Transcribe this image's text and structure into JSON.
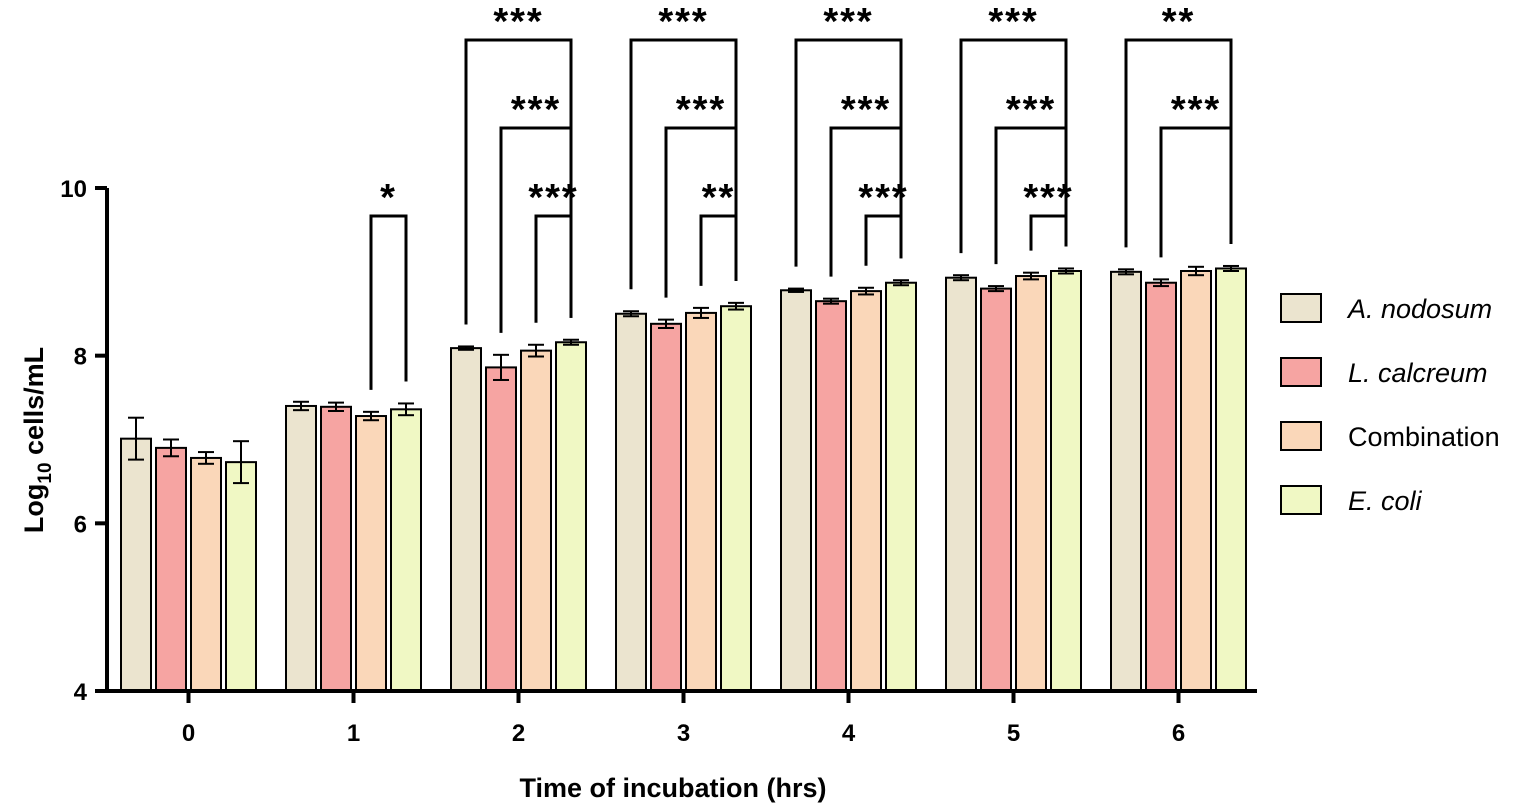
{
  "chart_data": {
    "type": "bar",
    "title": "",
    "xlabel": "Time of incubation (hrs)",
    "ylabel_main": "Log",
    "ylabel_sub": "10",
    "ylabel_rest": " cells/mL",
    "ylim": [
      4,
      10
    ],
    "yticks": [
      "4",
      "6",
      "8",
      "10"
    ],
    "categories": [
      "0",
      "1",
      "2",
      "3",
      "4",
      "5",
      "6"
    ],
    "series": [
      {
        "name": "A. nodosum",
        "italic": true,
        "color": "#ebe4cf",
        "values": [
          7.01,
          7.4,
          8.09,
          8.5,
          8.78,
          8.93,
          9.0
        ],
        "errors": [
          0.25,
          0.05,
          0.02,
          0.03,
          0.02,
          0.03,
          0.03
        ]
      },
      {
        "name": "L. calcreum",
        "italic": true,
        "color": "#f6a4a2",
        "values": [
          6.9,
          7.39,
          7.86,
          8.38,
          8.65,
          8.8,
          8.87
        ],
        "errors": [
          0.1,
          0.05,
          0.15,
          0.05,
          0.03,
          0.03,
          0.04
        ]
      },
      {
        "name": "Combination",
        "italic": false,
        "color": "#fad7b9",
        "values": [
          6.78,
          7.28,
          8.06,
          8.51,
          8.77,
          8.95,
          9.01
        ],
        "errors": [
          0.07,
          0.05,
          0.07,
          0.06,
          0.04,
          0.04,
          0.05
        ]
      },
      {
        "name": "E. coli",
        "italic": true,
        "color": "#f0f8c4",
        "values": [
          6.73,
          7.36,
          8.16,
          8.59,
          8.87,
          9.01,
          9.04
        ],
        "errors": [
          0.25,
          0.07,
          0.03,
          0.04,
          0.03,
          0.03,
          0.03
        ]
      }
    ],
    "significance": [
      {
        "group": 1,
        "from": 2,
        "to": 3,
        "label": "*"
      },
      {
        "group": 2,
        "from": 2,
        "to": 3,
        "label": "***"
      },
      {
        "group": 2,
        "from": 1,
        "to": 3,
        "label": "***"
      },
      {
        "group": 2,
        "from": 0,
        "to": 3,
        "label": "***"
      },
      {
        "group": 3,
        "from": 2,
        "to": 3,
        "label": "**"
      },
      {
        "group": 3,
        "from": 1,
        "to": 3,
        "label": "***"
      },
      {
        "group": 3,
        "from": 0,
        "to": 3,
        "label": "***"
      },
      {
        "group": 4,
        "from": 2,
        "to": 3,
        "label": "***"
      },
      {
        "group": 4,
        "from": 1,
        "to": 3,
        "label": "***"
      },
      {
        "group": 4,
        "from": 0,
        "to": 3,
        "label": "***"
      },
      {
        "group": 5,
        "from": 2,
        "to": 3,
        "label": "***"
      },
      {
        "group": 5,
        "from": 1,
        "to": 3,
        "label": "***"
      },
      {
        "group": 5,
        "from": 0,
        "to": 3,
        "label": "***"
      },
      {
        "group": 6,
        "from": 1,
        "to": 3,
        "label": "***"
      },
      {
        "group": 6,
        "from": 0,
        "to": 3,
        "label": "**"
      }
    ],
    "legend_position": "right"
  }
}
